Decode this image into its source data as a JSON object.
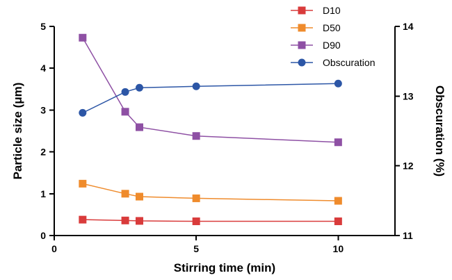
{
  "chart_data": {
    "type": "line",
    "x_axis": {
      "label": "Stirring time (min)",
      "ticks": [
        0,
        5,
        10
      ],
      "range": [
        0,
        12
      ]
    },
    "y_left_axis": {
      "label": "Particle size (μm)",
      "ticks": [
        0,
        1,
        2,
        3,
        4,
        5
      ],
      "range": [
        0,
        5
      ]
    },
    "y_right_axis": {
      "label": "Obscuration (%)",
      "ticks": [
        11,
        12,
        13,
        14
      ],
      "range": [
        11,
        14
      ]
    },
    "grid": false,
    "legend_position": "top-right",
    "series": [
      {
        "name": "D10",
        "axis": "left",
        "marker": "square",
        "color": "#d93b3b",
        "x": [
          1,
          2.5,
          3,
          5,
          10
        ],
        "y": [
          0.38,
          0.36,
          0.35,
          0.34,
          0.34
        ]
      },
      {
        "name": "D50",
        "axis": "left",
        "marker": "square",
        "color": "#ef8b2c",
        "x": [
          1,
          2.5,
          3,
          5,
          10
        ],
        "y": [
          1.24,
          1.0,
          0.93,
          0.89,
          0.83
        ]
      },
      {
        "name": "D90",
        "axis": "left",
        "marker": "square",
        "color": "#8e50a4",
        "x": [
          1,
          2.5,
          3,
          5,
          10
        ],
        "y": [
          4.73,
          2.96,
          2.59,
          2.38,
          2.23
        ]
      },
      {
        "name": "Obscuration",
        "axis": "right",
        "marker": "circle",
        "color": "#2c56a6",
        "x": [
          1,
          2.5,
          3,
          5,
          10
        ],
        "y": [
          12.76,
          13.06,
          13.12,
          13.14,
          13.18
        ]
      }
    ]
  }
}
